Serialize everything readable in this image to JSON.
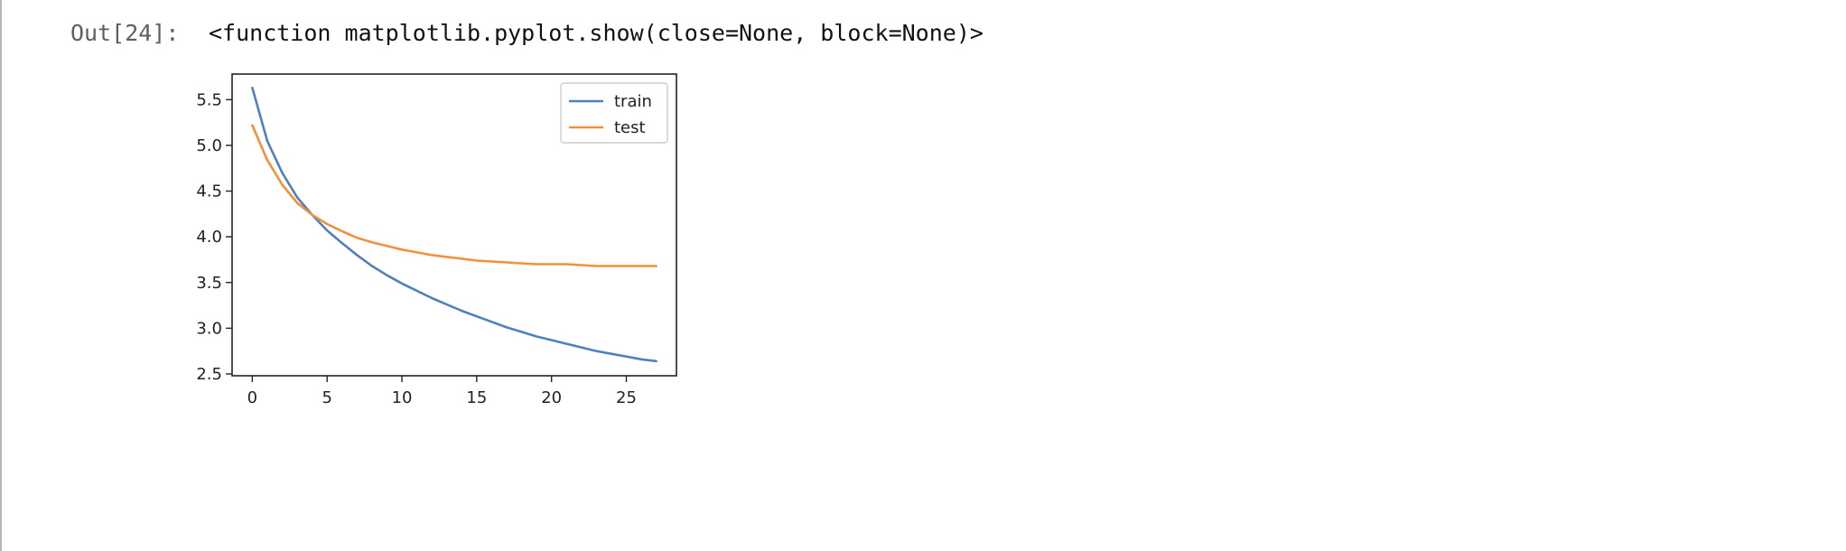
{
  "cell": {
    "prompt": "Out[24]:",
    "output_text": "<function matplotlib.pyplot.show(close=None, block=None)>"
  },
  "chart_data": {
    "type": "line",
    "xlim": [
      -1.35,
      28.35
    ],
    "ylim": [
      2.48,
      5.78
    ],
    "x_ticks": [
      0,
      5,
      10,
      15,
      20,
      25
    ],
    "y_ticks": [
      2.5,
      3.0,
      3.5,
      4.0,
      4.5,
      5.0,
      5.5
    ],
    "x_tick_labels": [
      "0",
      "5",
      "10",
      "15",
      "20",
      "25"
    ],
    "y_tick_labels": [
      "2.5",
      "3.0",
      "3.5",
      "4.0",
      "4.5",
      "5.0",
      "5.5"
    ],
    "legend_position": "top-right",
    "grid": false,
    "series": [
      {
        "name": "train",
        "color": "#4f81bd",
        "x": [
          0,
          1,
          2,
          3,
          4,
          5,
          6,
          7,
          8,
          9,
          10,
          11,
          12,
          13,
          14,
          15,
          16,
          17,
          18,
          19,
          20,
          21,
          22,
          23,
          24,
          25,
          26,
          27
        ],
        "values": [
          5.63,
          5.05,
          4.7,
          4.43,
          4.24,
          4.07,
          3.93,
          3.8,
          3.68,
          3.58,
          3.49,
          3.41,
          3.33,
          3.26,
          3.19,
          3.13,
          3.07,
          3.01,
          2.96,
          2.91,
          2.87,
          2.83,
          2.79,
          2.75,
          2.72,
          2.69,
          2.66,
          2.64
        ]
      },
      {
        "name": "test",
        "color": "#f0913c",
        "x": [
          0,
          1,
          2,
          3,
          4,
          5,
          6,
          7,
          8,
          9,
          10,
          11,
          12,
          13,
          14,
          15,
          16,
          17,
          18,
          19,
          20,
          21,
          22,
          23,
          24,
          25,
          26,
          27
        ],
        "values": [
          5.22,
          4.84,
          4.57,
          4.37,
          4.24,
          4.14,
          4.06,
          3.99,
          3.94,
          3.9,
          3.86,
          3.83,
          3.8,
          3.78,
          3.76,
          3.74,
          3.73,
          3.72,
          3.71,
          3.7,
          3.7,
          3.7,
          3.69,
          3.68,
          3.68,
          3.68,
          3.68,
          3.68
        ]
      }
    ]
  }
}
